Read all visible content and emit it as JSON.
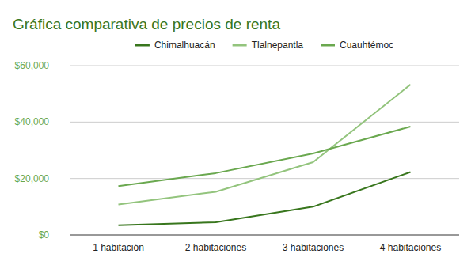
{
  "chart_data": {
    "type": "line",
    "title": "Gráfica comparativa de precios de renta",
    "categories": [
      "1 habitación",
      "2 habitaciones",
      "3 habitaciones",
      "4 habitaciones"
    ],
    "series": [
      {
        "name": "Chimalhuacán",
        "color": "#38761d",
        "values": [
          3400,
          4500,
          10000,
          22300
        ]
      },
      {
        "name": "Tlalnepantla",
        "color": "#93c47d",
        "values": [
          10800,
          15300,
          25800,
          53300
        ]
      },
      {
        "name": "Cuauhtémoc",
        "color": "#6aa84f",
        "values": [
          17300,
          21900,
          28900,
          38400
        ]
      }
    ],
    "ylim": [
      0,
      60000
    ],
    "yticks": [
      {
        "value": 0,
        "label": "$0"
      },
      {
        "value": 20000,
        "label": "$20,000"
      },
      {
        "value": 40000,
        "label": "$40,000"
      },
      {
        "value": 60000,
        "label": "$60,000"
      }
    ],
    "grid": true,
    "legend": "top"
  }
}
